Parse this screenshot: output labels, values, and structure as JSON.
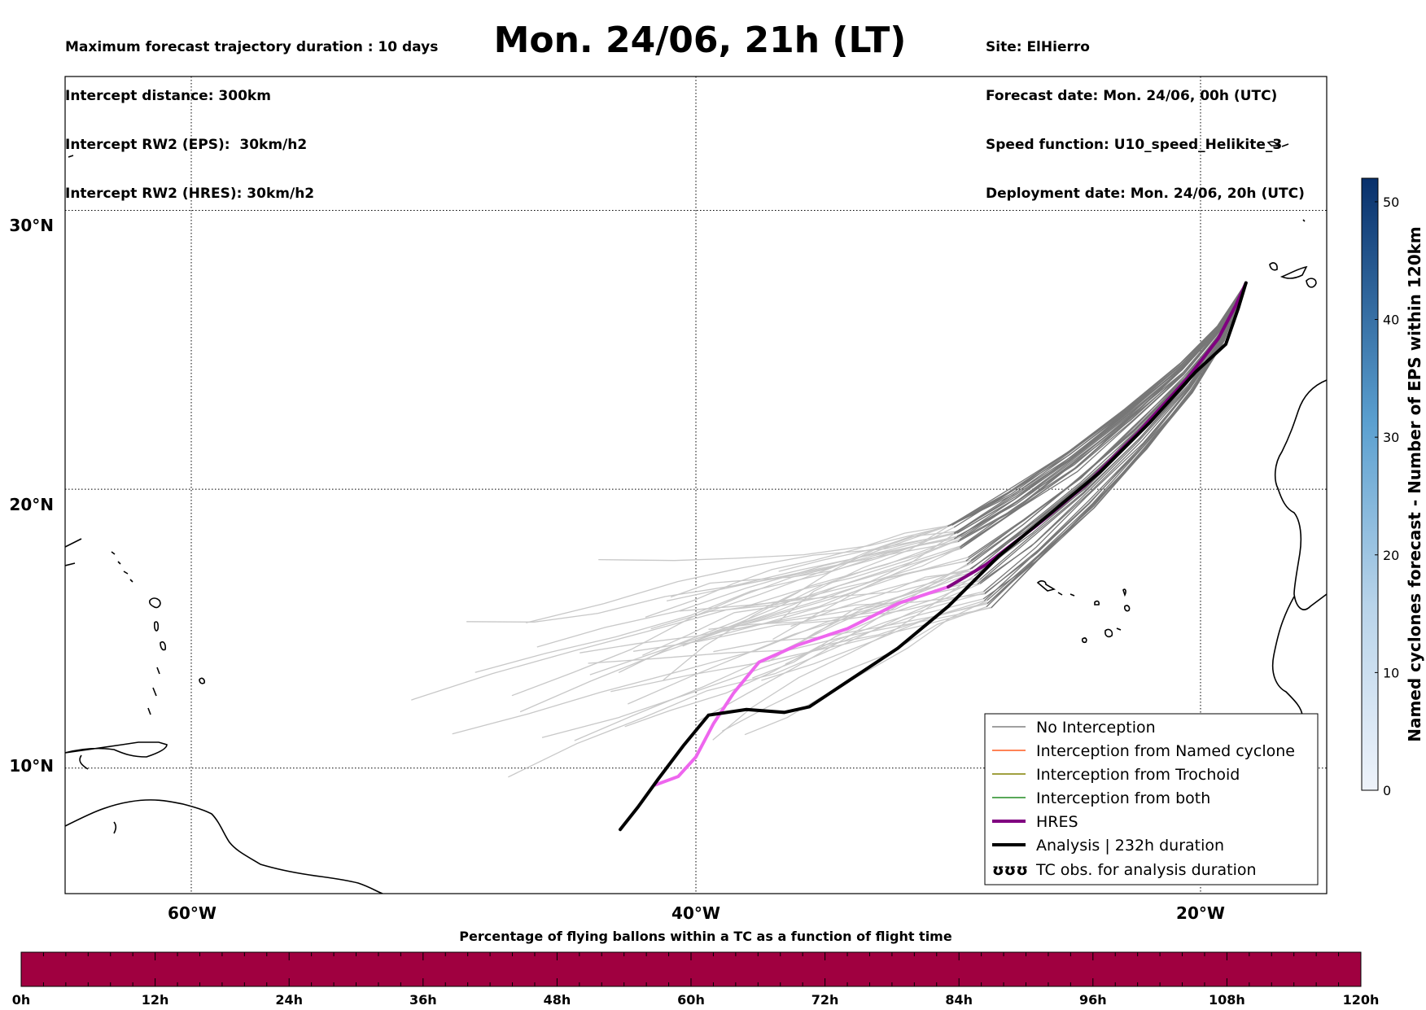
{
  "header": {
    "left_lines": [
      "Maximum forecast trajectory duration : 10 days",
      "Intercept distance: 300km",
      "Intercept RW2 (EPS):  30km/h2",
      "Intercept RW2 (HRES): 30km/h2"
    ],
    "title": "Mon. 24/06, 21h (LT)",
    "right_lines": [
      "Site: ElHierro",
      "Forecast date: Mon. 24/06, 00h (UTC)",
      "Speed function: U10_speed_Helikite_3",
      "Deployment date: Mon. 24/06, 20h (UTC)"
    ]
  },
  "map": {
    "lon_range": [
      -65,
      -15
    ],
    "lat_range": [
      5.5,
      34.8
    ],
    "lon_ticks": [
      {
        "value": -60,
        "label": "60°W"
      },
      {
        "value": -40,
        "label": "40°W"
      },
      {
        "value": -20,
        "label": "20°W"
      }
    ],
    "lat_ticks": [
      {
        "value": 30,
        "label": "30°N"
      },
      {
        "value": 20,
        "label": "20°N"
      },
      {
        "value": 10,
        "label": "10°N"
      }
    ],
    "grid": true,
    "colors": {
      "no_interception": "#808080",
      "eps_late": "#c8c8c8",
      "named_cyclone": "#ff5a1e",
      "trochoid": "#808000",
      "both": "#228b22",
      "hres": "#800080",
      "hres_late": "#ee66ee",
      "analysis": "#000000"
    },
    "analysis_track": [
      [
        -18.2,
        27.4
      ],
      [
        -18.5,
        26.5
      ],
      [
        -19.0,
        25.2
      ],
      [
        -20.2,
        24.2
      ],
      [
        -22.0,
        22.4
      ],
      [
        -24.0,
        20.6
      ],
      [
        -26.0,
        19.1
      ],
      [
        -28.0,
        17.6
      ],
      [
        -30.0,
        15.8
      ],
      [
        -32.0,
        14.3
      ],
      [
        -34.0,
        13.1
      ],
      [
        -35.5,
        12.2
      ],
      [
        -36.5,
        12.0
      ],
      [
        -38.0,
        12.1
      ],
      [
        -39.5,
        11.9
      ],
      [
        -40.5,
        10.8
      ],
      [
        -41.5,
        9.6
      ],
      [
        -42.3,
        8.6
      ],
      [
        -43.0,
        7.8
      ]
    ],
    "hres_track": [
      [
        -18.2,
        27.4
      ],
      [
        -18.6,
        26.6
      ],
      [
        -19.3,
        25.4
      ],
      [
        -20.5,
        24.0
      ],
      [
        -22.5,
        22.0
      ],
      [
        -24.5,
        20.2
      ],
      [
        -26.5,
        18.7
      ],
      [
        -28.5,
        17.3
      ],
      [
        -30.0,
        16.5
      ]
    ],
    "hres_late_track": [
      [
        -30.0,
        16.5
      ],
      [
        -32.0,
        15.9
      ],
      [
        -34.0,
        15.0
      ],
      [
        -36.0,
        14.4
      ],
      [
        -37.5,
        13.8
      ],
      [
        -38.5,
        12.7
      ],
      [
        -39.3,
        11.6
      ],
      [
        -40.0,
        10.4
      ],
      [
        -40.7,
        9.7
      ],
      [
        -41.6,
        9.4
      ]
    ]
  },
  "legend": {
    "items": [
      {
        "label": "No Interception",
        "style": "thin",
        "color": "#808080"
      },
      {
        "label": "Interception from Named cyclone",
        "style": "thin",
        "color": "#ff5a1e"
      },
      {
        "label": "Interception from Trochoid",
        "style": "thin",
        "color": "#808000"
      },
      {
        "label": "Interception from both",
        "style": "thin",
        "color": "#228b22"
      },
      {
        "label": "HRES",
        "style": "thick",
        "color": "#800080"
      },
      {
        "label": "Analysis | 232h duration",
        "style": "thick",
        "color": "#000000"
      },
      {
        "label": "TC obs. for analysis duration",
        "style": "symbol",
        "color": "#000000",
        "symbol": "ʊʊʊ"
      }
    ]
  },
  "colorbar": {
    "label": "Named cyclones forecast - Number of EPS within 120km",
    "range": [
      0,
      52
    ],
    "ticks": [
      "0",
      "10",
      "20",
      "30",
      "40",
      "50"
    ],
    "color_low": "#e6eef8",
    "color_high": "#08306b"
  },
  "bottom_bar": {
    "title": "Percentage of flying ballons within a TC as a function of flight time",
    "color": "#a00040",
    "ticks": [
      "0h",
      "12h",
      "24h",
      "36h",
      "48h",
      "60h",
      "72h",
      "84h",
      "96h",
      "108h",
      "120h"
    ],
    "minor_per_major": 6
  }
}
